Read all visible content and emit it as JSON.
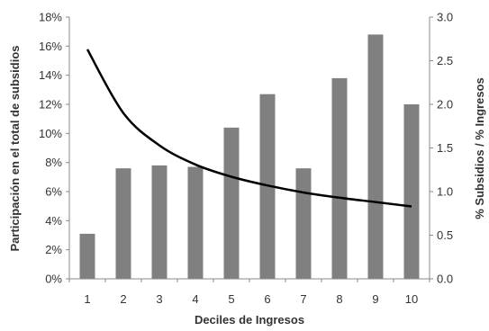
{
  "chart_data": {
    "type": "bar",
    "title": "",
    "xlabel": "Deciles de Ingresos",
    "ylabel_left": "Participación en el total de subsidios",
    "ylabel_right": "% Subsidios / % Ingresos",
    "categories": [
      "1",
      "2",
      "3",
      "4",
      "5",
      "6",
      "7",
      "8",
      "9",
      "10"
    ],
    "bar_series": {
      "name": "",
      "axis": "left",
      "color": "#808080",
      "values": [
        3.1,
        7.6,
        7.8,
        7.7,
        10.4,
        12.7,
        7.6,
        13.8,
        16.8,
        12.0
      ]
    },
    "line_series": {
      "name": "",
      "axis": "right",
      "color": "#000000",
      "values": [
        2.63,
        1.9,
        1.53,
        1.31,
        1.17,
        1.07,
        0.99,
        0.93,
        0.88,
        0.83
      ]
    },
    "ylim_left": [
      0,
      18
    ],
    "yticks_left": [
      "0%",
      "2%",
      "4%",
      "6%",
      "8%",
      "10%",
      "12%",
      "14%",
      "16%",
      "18%"
    ],
    "ylim_right": [
      0,
      3
    ],
    "yticks_right": [
      "0.0",
      "0.5",
      "1.0",
      "1.5",
      "2.0",
      "2.5",
      "3.0"
    ],
    "grid": false,
    "legend": "none"
  }
}
